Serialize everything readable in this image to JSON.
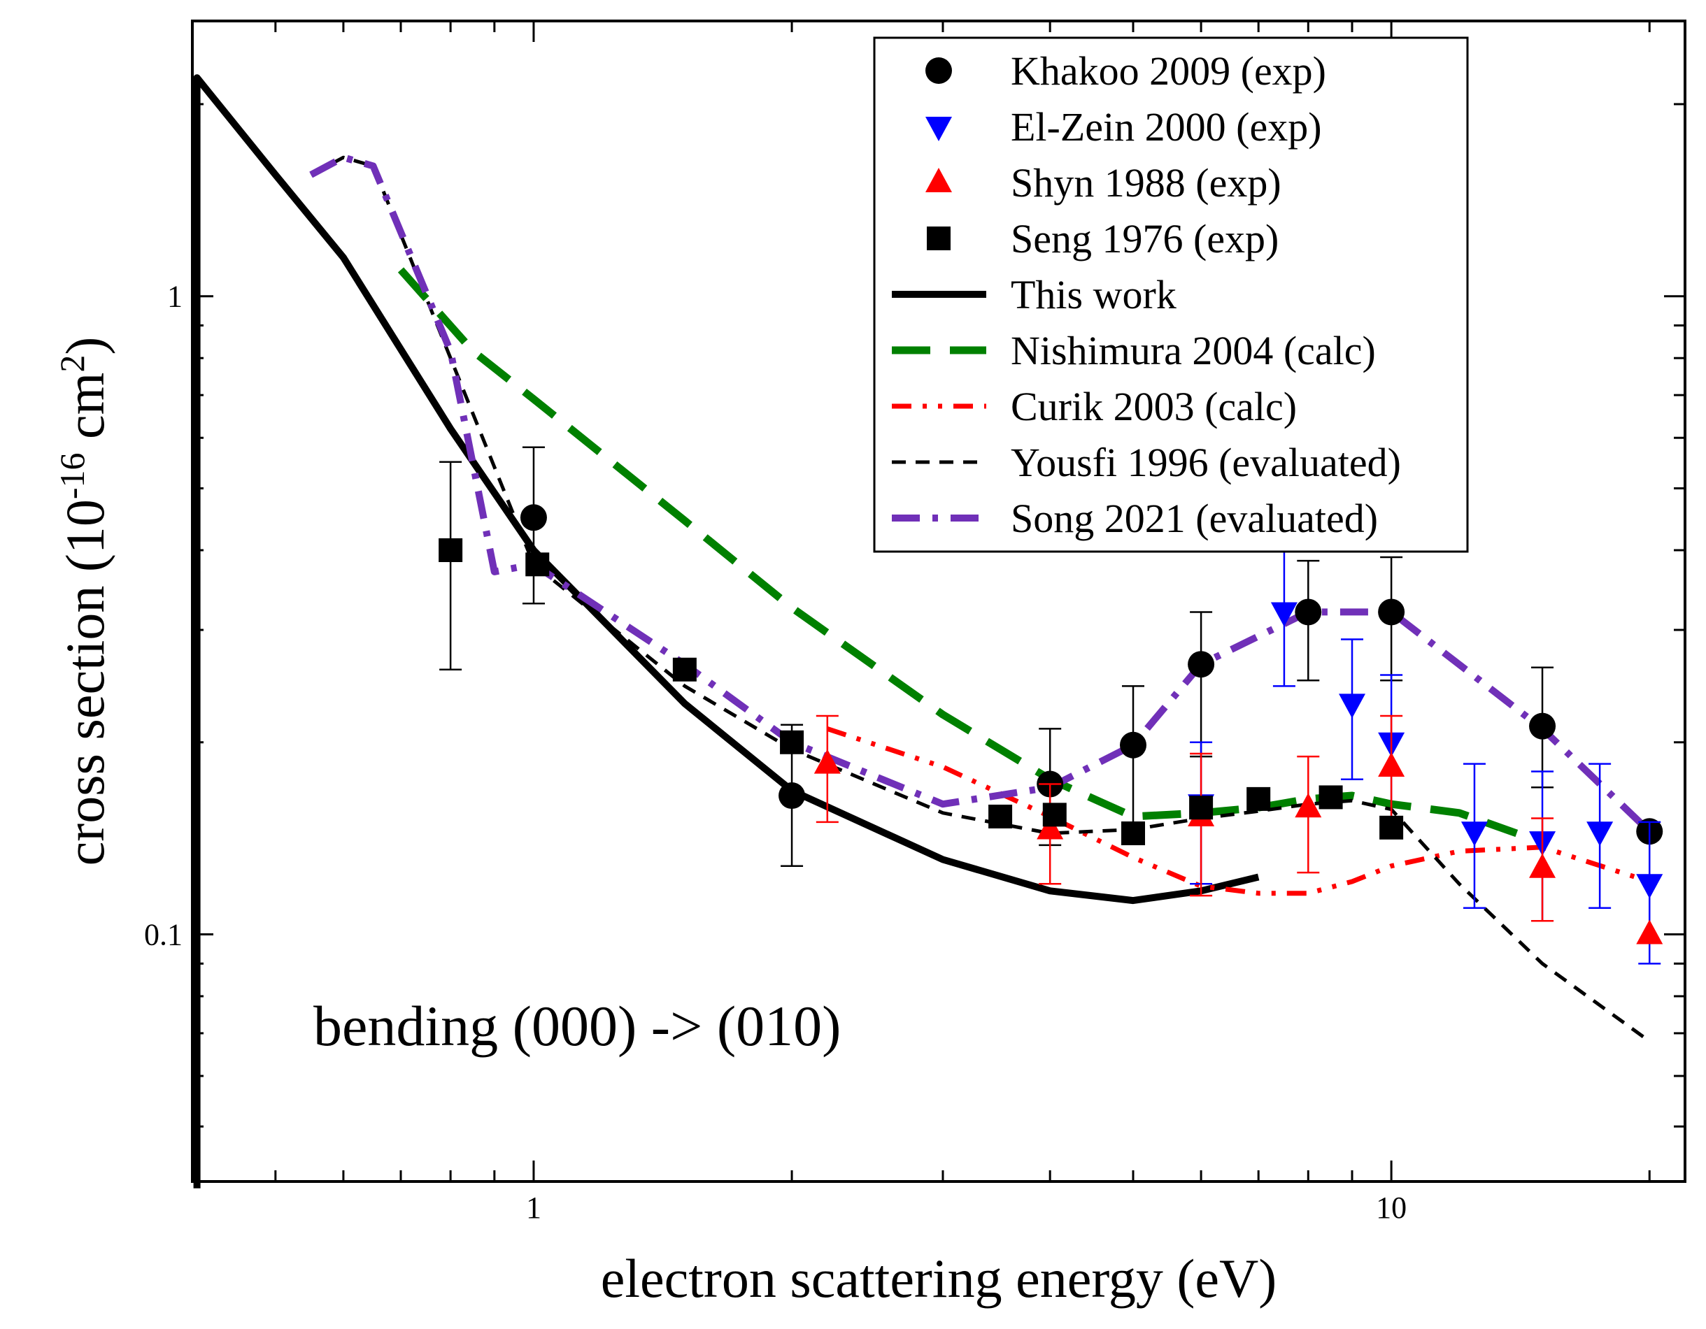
{
  "chart_data": {
    "type": "scatter",
    "title": "",
    "xlabel": "electron scattering energy (eV)",
    "ylabel_parts": {
      "main": "cross section (10",
      "exp1": "-16",
      "unit": " cm",
      "exp2": "2",
      "close": ")"
    },
    "xscale": "log",
    "yscale": "log",
    "xlim": [
      0.4,
      22
    ],
    "ylim": [
      0.041,
      2.7
    ],
    "x_ticks": [
      {
        "value": 1,
        "label": "1"
      },
      {
        "value": 10,
        "label": "10"
      }
    ],
    "y_ticks": [
      {
        "value": 0.1,
        "label": "0.1"
      },
      {
        "value": 1,
        "label": "1"
      }
    ],
    "legend_position": "top-right",
    "annotation": "bending (000) -> (010)",
    "colors": {
      "black": "#000000",
      "blue": "#0000ff",
      "red": "#ff0000",
      "green": "#008000",
      "purple": "#7030b8"
    },
    "series": [
      {
        "name": "Khakoo 2009 (exp)",
        "kind": "marker",
        "marker": "circle",
        "color": "#000000",
        "points": [
          {
            "x": 1.0,
            "y": 0.45,
            "err": [
              0.33,
              0.58
            ]
          },
          {
            "x": 2.0,
            "y": 0.165,
            "err": [
              0.128,
              0.213
            ]
          },
          {
            "x": 4.0,
            "y": 0.172,
            "err": [
              0.138,
              0.21
            ]
          },
          {
            "x": 5.0,
            "y": 0.198,
            "err": [
              0.147,
              0.245
            ]
          },
          {
            "x": 6.0,
            "y": 0.265,
            "err": [
              0.19,
              0.32
            ]
          },
          {
            "x": 8.0,
            "y": 0.32,
            "err": [
              0.25,
              0.385
            ]
          },
          {
            "x": 10.0,
            "y": 0.32,
            "err": [
              0.25,
              0.39
            ]
          },
          {
            "x": 15.0,
            "y": 0.212,
            "err": [
              0.17,
              0.262
            ]
          },
          {
            "x": 20.0,
            "y": 0.145,
            "err": null
          }
        ]
      },
      {
        "name": "El-Zein 2000 (exp)",
        "kind": "marker",
        "marker": "triangle-down",
        "color": "#0000ff",
        "points": [
          {
            "x": 6.0,
            "y": 0.16,
            "err": [
              0.12,
              0.2
            ]
          },
          {
            "x": 7.5,
            "y": 0.32,
            "err": [
              0.245,
              0.41
            ]
          },
          {
            "x": 9.0,
            "y": 0.23,
            "err": [
              0.175,
              0.29
            ]
          },
          {
            "x": 10.0,
            "y": 0.2,
            "err": [
              0.15,
              0.255
            ]
          },
          {
            "x": 12.5,
            "y": 0.145,
            "err": [
              0.11,
              0.185
            ]
          },
          {
            "x": 15.0,
            "y": 0.14,
            "err": [
              0.105,
              0.18
            ]
          },
          {
            "x": 17.5,
            "y": 0.145,
            "err": [
              0.11,
              0.185
            ]
          },
          {
            "x": 20.0,
            "y": 0.12,
            "err": [
              0.09,
              0.15
            ]
          }
        ]
      },
      {
        "name": "Shyn 1988 (exp)",
        "kind": "marker",
        "marker": "triangle-up",
        "color": "#ff0000",
        "points": [
          {
            "x": 2.2,
            "y": 0.185,
            "err": [
              0.15,
              0.22
            ]
          },
          {
            "x": 4.0,
            "y": 0.146,
            "err": [
              0.12,
              0.172
            ]
          },
          {
            "x": 6.0,
            "y": 0.153,
            "err": [
              0.115,
              0.192
            ]
          },
          {
            "x": 8.0,
            "y": 0.158,
            "err": [
              0.125,
              0.19
            ]
          },
          {
            "x": 10.0,
            "y": 0.183,
            "err": [
              0.145,
              0.22
            ]
          },
          {
            "x": 15.0,
            "y": 0.127,
            "err": [
              0.105,
              0.152
            ]
          },
          {
            "x": 20.0,
            "y": 0.1,
            "err": null
          }
        ]
      },
      {
        "name": "Seng 1976 (exp)",
        "kind": "marker",
        "marker": "square",
        "color": "#000000",
        "points": [
          {
            "x": 0.8,
            "y": 0.4,
            "err": [
              0.26,
              0.55
            ]
          },
          {
            "x": 1.01,
            "y": 0.38,
            "err": null
          },
          {
            "x": 1.5,
            "y": 0.26,
            "err": null
          },
          {
            "x": 2.0,
            "y": 0.2,
            "err": null
          },
          {
            "x": 3.5,
            "y": 0.153,
            "err": null
          },
          {
            "x": 4.05,
            "y": 0.154,
            "err": null
          },
          {
            "x": 5.0,
            "y": 0.144,
            "err": null
          },
          {
            "x": 6.0,
            "y": 0.158,
            "err": null
          },
          {
            "x": 7.0,
            "y": 0.163,
            "err": null
          },
          {
            "x": 8.5,
            "y": 0.164,
            "err": null
          },
          {
            "x": 10.0,
            "y": 0.147,
            "err": null
          }
        ]
      },
      {
        "name": "This work",
        "kind": "line",
        "style": "solid",
        "color": "#000000",
        "width": 10,
        "points": [
          [
            0.405,
            0.04
          ],
          [
            0.405,
            2.2
          ],
          [
            0.5,
            1.55
          ],
          [
            0.6,
            1.15
          ],
          [
            0.8,
            0.62
          ],
          [
            1.0,
            0.4
          ],
          [
            1.5,
            0.23
          ],
          [
            2.0,
            0.168
          ],
          [
            3.0,
            0.131
          ],
          [
            4.0,
            0.117
          ],
          [
            5.0,
            0.113
          ],
          [
            6.0,
            0.117
          ],
          [
            7.0,
            0.123
          ]
        ]
      },
      {
        "name": "Nishimura 2004 (calc)",
        "kind": "line",
        "style": "dash-long",
        "color": "#008000",
        "width": 11,
        "points": [
          [
            0.7,
            1.1
          ],
          [
            0.85,
            0.82
          ],
          [
            1.0,
            0.69
          ],
          [
            1.5,
            0.445
          ],
          [
            2.0,
            0.325
          ],
          [
            3.0,
            0.221
          ],
          [
            4.0,
            0.175
          ],
          [
            5.0,
            0.153
          ],
          [
            6.0,
            0.155
          ],
          [
            7.0,
            0.158
          ],
          [
            8.0,
            0.163
          ],
          [
            9.0,
            0.165
          ],
          [
            10.0,
            0.16
          ],
          [
            12.0,
            0.155
          ],
          [
            14.0,
            0.144
          ]
        ]
      },
      {
        "name": "Curik 2003 (calc)",
        "kind": "line",
        "style": "dash-dot-dot",
        "color": "#ff0000",
        "width": 7,
        "points": [
          [
            2.2,
            0.21
          ],
          [
            3.0,
            0.183
          ],
          [
            4.0,
            0.153
          ],
          [
            5.0,
            0.132
          ],
          [
            6.0,
            0.119
          ],
          [
            7.0,
            0.116
          ],
          [
            8.0,
            0.116
          ],
          [
            9.0,
            0.121
          ],
          [
            10.0,
            0.128
          ],
          [
            12.0,
            0.135
          ],
          [
            15.0,
            0.137
          ],
          [
            20.0,
            0.121
          ]
        ]
      },
      {
        "name": "Yousfi 1996 (evaluated)",
        "kind": "line",
        "style": "dash",
        "color": "#000000",
        "width": 5,
        "points": [
          [
            0.55,
            1.55
          ],
          [
            0.6,
            1.65
          ],
          [
            0.65,
            1.6
          ],
          [
            0.8,
            0.8
          ],
          [
            1.0,
            0.38
          ],
          [
            1.5,
            0.245
          ],
          [
            2.0,
            0.195
          ],
          [
            3.0,
            0.155
          ],
          [
            4.0,
            0.144
          ],
          [
            5.0,
            0.146
          ],
          [
            6.0,
            0.152
          ],
          [
            7.0,
            0.156
          ],
          [
            8.0,
            0.16
          ],
          [
            9.0,
            0.162
          ],
          [
            10.0,
            0.157
          ],
          [
            12.0,
            0.12
          ],
          [
            15.0,
            0.09
          ],
          [
            20.0,
            0.068
          ]
        ]
      },
      {
        "name": "Song 2021 (evaluated)",
        "kind": "line",
        "style": "dash-dot",
        "color": "#7030b8",
        "width": 10,
        "points": [
          [
            0.55,
            1.55
          ],
          [
            0.6,
            1.65
          ],
          [
            0.65,
            1.6
          ],
          [
            0.8,
            0.82
          ],
          [
            0.9,
            0.37
          ],
          [
            1.0,
            0.38
          ],
          [
            1.5,
            0.265
          ],
          [
            2.0,
            0.2
          ],
          [
            3.0,
            0.16
          ],
          [
            4.0,
            0.17
          ],
          [
            5.0,
            0.198
          ],
          [
            6.0,
            0.265
          ],
          [
            8.0,
            0.32
          ],
          [
            10.0,
            0.32
          ],
          [
            15.0,
            0.21
          ],
          [
            20.0,
            0.145
          ]
        ]
      }
    ]
  }
}
